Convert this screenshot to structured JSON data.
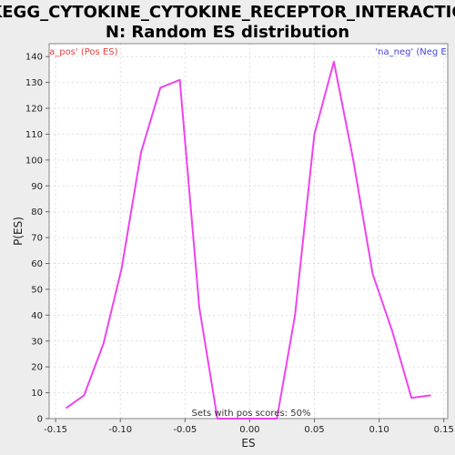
{
  "title_lines": [
    "KEGG_CYTOKINE_CYTOKINE_RECEPTOR_INTERACTIO",
    "N: Random ES distribution"
  ],
  "colors": {
    "background": "#ededed",
    "plot_bg": "#ffffff",
    "series_line": "#ee44ee",
    "legend_pos": "#e04040",
    "legend_neg": "#4444dd",
    "grid": "#dddddd"
  },
  "chart_data": {
    "type": "line",
    "title": "KEGG_CYTOKINE_CYTOKINE_RECEPTOR_INTERACTION: Random ES distribution",
    "xlabel": "ES",
    "ylabel": "P(ES)",
    "xlim": [
      -0.155,
      0.153
    ],
    "ylim": [
      0,
      145
    ],
    "xticks": [
      -0.15,
      -0.1,
      -0.05,
      0.0,
      0.05,
      0.1,
      0.15
    ],
    "xtick_labels": [
      "-0.15",
      "-0.10",
      "-0.05",
      "0.00",
      "0.05",
      "0.10",
      "0.15"
    ],
    "yticks": [
      0,
      10,
      20,
      30,
      40,
      50,
      60,
      70,
      80,
      90,
      100,
      110,
      120,
      130,
      140
    ],
    "grid": true,
    "legend": [
      {
        "label": "'na_pos' (Pos ES)",
        "position": "top-left"
      },
      {
        "label": "'na_neg' (Neg ES)",
        "position": "top-right"
      }
    ],
    "annotation": "Sets with pos scores: 50%",
    "series": [
      {
        "points": [
          [
            -0.142,
            4
          ],
          [
            -0.128,
            9
          ],
          [
            -0.113,
            29
          ],
          [
            -0.099,
            58
          ],
          [
            -0.084,
            103
          ],
          [
            -0.069,
            128
          ],
          [
            -0.054,
            131
          ],
          [
            -0.039,
            43
          ],
          [
            -0.025,
            0
          ],
          [
            0.021,
            0
          ],
          [
            0.035,
            40
          ],
          [
            0.05,
            110
          ],
          [
            0.065,
            138
          ],
          [
            0.08,
            100
          ],
          [
            0.095,
            56
          ],
          [
            0.11,
            34
          ],
          [
            0.125,
            8
          ],
          [
            0.14,
            9
          ]
        ]
      }
    ]
  }
}
